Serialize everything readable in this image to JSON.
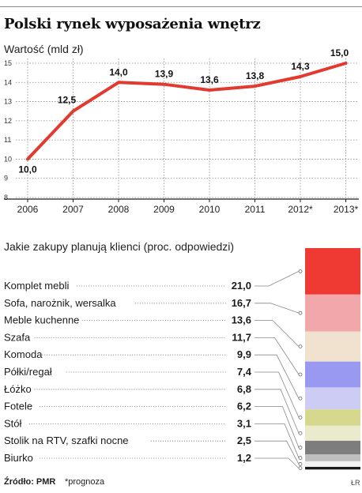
{
  "header": {
    "title": "Polski rynek wyposażenia wnętrz",
    "ylabel": "Wartość (mld zł)"
  },
  "chart_data": [
    {
      "type": "line",
      "title": "Polski rynek wyposażenia wnętrz",
      "ylabel": "Wartość (mld zł)",
      "x": [
        "2006",
        "2007",
        "2008",
        "2009",
        "2010",
        "2011",
        "2012*",
        "2013*"
      ],
      "y_ticks": [
        "15",
        "14",
        "13",
        "12",
        "11",
        "10",
        "9",
        "8"
      ],
      "ylim": [
        8,
        15
      ],
      "grid": true,
      "line_color": "#e23a2f",
      "series": [
        {
          "values": [
            10.0,
            12.5,
            14.0,
            13.9,
            13.6,
            13.8,
            14.3,
            15.0
          ],
          "labels": [
            "10,0",
            "12,5",
            "14,0",
            "13,9",
            "13,6",
            "13,8",
            "14,3",
            "15,0"
          ]
        }
      ]
    },
    {
      "type": "bar",
      "title": "Jakie zakupy planują klienci (proc. odpowiedzi)",
      "categories": [
        "Komplet mebli",
        "Sofa, narożnik, wersalka",
        "Meble kuchenne",
        "Szafa",
        "Komoda",
        "Półki/regał",
        "Łóżko",
        "Fotele",
        "Stół",
        "Stolik na RTV, szafki nocne",
        "Biurko"
      ],
      "values": [
        21.0,
        16.7,
        13.6,
        11.7,
        9.9,
        7.4,
        6.8,
        6.2,
        3.1,
        2.5,
        1.2
      ],
      "value_labels": [
        "21,0",
        "16,7",
        "13,6",
        "11,7",
        "9,9",
        "7,4",
        "6,8",
        "6,2",
        "3,1",
        "2,5",
        "1,2"
      ],
      "colors": [
        "#ee3a33",
        "#f2a8aa",
        "#f1e1cf",
        "#9999f2",
        "#ccccf4",
        "#d6d98d",
        "#eaebcc",
        "#7d7d7d",
        "#bfbfbf",
        "#f2f2f2",
        "#1a1a1a"
      ],
      "stacked_total": 100
    }
  ],
  "footer": {
    "source": "Źródło: PMR",
    "note": "*prognoza",
    "mark": "ŁR"
  }
}
